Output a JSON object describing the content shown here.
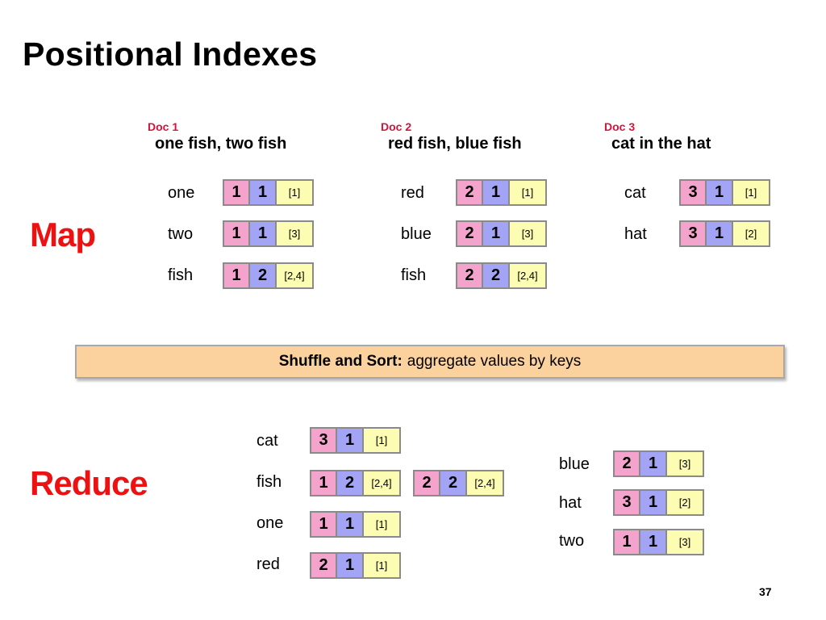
{
  "title": "Positional Indexes",
  "map_label": "Map",
  "reduce_label": "Reduce",
  "shuffle": {
    "bold": "Shuffle and Sort:",
    "rest": "aggregate values by keys"
  },
  "page_number": "37",
  "docs": [
    {
      "label": "Doc 1",
      "text": "one fish, two fish"
    },
    {
      "label": "Doc 2",
      "text": "red fish, blue fish"
    },
    {
      "label": "Doc 3",
      "text": "cat in the hat"
    }
  ],
  "map_rows": [
    {
      "term": "one",
      "tuples": [
        {
          "doc": "1",
          "tf": "1",
          "pos": "[1]"
        }
      ]
    },
    {
      "term": "two",
      "tuples": [
        {
          "doc": "1",
          "tf": "1",
          "pos": "[3]"
        }
      ]
    },
    {
      "term": "fish",
      "tuples": [
        {
          "doc": "1",
          "tf": "2",
          "pos": "[2,4]"
        }
      ]
    },
    {
      "term": "red",
      "tuples": [
        {
          "doc": "2",
          "tf": "1",
          "pos": "[1]"
        }
      ]
    },
    {
      "term": "blue",
      "tuples": [
        {
          "doc": "2",
          "tf": "1",
          "pos": "[3]"
        }
      ]
    },
    {
      "term": "fish",
      "tuples": [
        {
          "doc": "2",
          "tf": "2",
          "pos": "[2,4]"
        }
      ]
    },
    {
      "term": "cat",
      "tuples": [
        {
          "doc": "3",
          "tf": "1",
          "pos": "[1]"
        }
      ]
    },
    {
      "term": "hat",
      "tuples": [
        {
          "doc": "3",
          "tf": "1",
          "pos": "[2]"
        }
      ]
    }
  ],
  "reduce_rows": [
    {
      "term": "cat",
      "tuples": [
        {
          "doc": "3",
          "tf": "1",
          "pos": "[1]"
        }
      ]
    },
    {
      "term": "fish",
      "tuples": [
        {
          "doc": "1",
          "tf": "2",
          "pos": "[2,4]"
        },
        {
          "doc": "2",
          "tf": "2",
          "pos": "[2,4]"
        }
      ]
    },
    {
      "term": "one",
      "tuples": [
        {
          "doc": "1",
          "tf": "1",
          "pos": "[1]"
        }
      ]
    },
    {
      "term": "red",
      "tuples": [
        {
          "doc": "2",
          "tf": "1",
          "pos": "[1]"
        }
      ]
    },
    {
      "term": "blue",
      "tuples": [
        {
          "doc": "2",
          "tf": "1",
          "pos": "[3]"
        }
      ]
    },
    {
      "term": "hat",
      "tuples": [
        {
          "doc": "3",
          "tf": "1",
          "pos": "[2]"
        }
      ]
    },
    {
      "term": "two",
      "tuples": [
        {
          "doc": "1",
          "tf": "1",
          "pos": "[3]"
        }
      ]
    }
  ],
  "colors": {
    "doc_cell": "#f3a3cc",
    "tf_cell": "#a4a4f6",
    "pos_cell": "#fcfcb2",
    "accent_red": "#ee1111",
    "doc_label": "#d4143c",
    "shuffle_fill": "#fbd19e"
  }
}
